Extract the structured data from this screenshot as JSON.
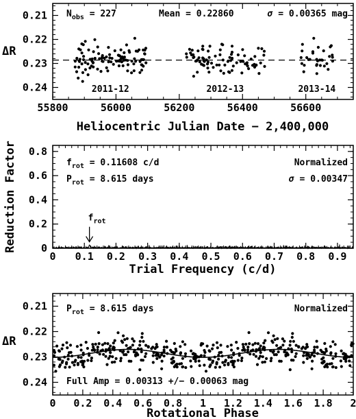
{
  "chart_data": [
    {
      "type": "scatter",
      "xlim": [
        55800,
        56750
      ],
      "ylim": [
        0.245,
        0.205
      ],
      "y_inverted": true,
      "xticks": [
        55800,
        56000,
        56200,
        56400,
        56600
      ],
      "yticks": [
        0.21,
        0.22,
        0.23,
        0.24
      ],
      "ytick_labels": [
        "0.21",
        "0.22",
        "0.23",
        "0.24"
      ],
      "xlabel": "Heliocentric Julian Date − 2,400,000",
      "ylabel": "ΔR",
      "mean_line": 0.2286,
      "annotations": {
        "nobs_main": "N",
        "nobs_sub": "obs",
        "nobs_value": " = 227",
        "mean": "Mean = 0.22860",
        "sigma_symbol": "σ",
        "sigma_value": " = 0.00365 mag"
      },
      "seasons": [
        {
          "label": "2011-12",
          "x_range": [
            55870,
            56095
          ]
        },
        {
          "label": "2012-13",
          "x_range": [
            56220,
            56470
          ]
        },
        {
          "label": "2013-14",
          "x_range": [
            56585,
            56685
          ]
        }
      ],
      "n_points": 227,
      "point_scatter_sigma": 0.00365
    },
    {
      "type": "line",
      "xlim": [
        0,
        0.95
      ],
      "ylim": [
        0,
        0.85
      ],
      "xticks": [
        0,
        0.1,
        0.2,
        0.3,
        0.4,
        0.5,
        0.6,
        0.7,
        0.8,
        0.9
      ],
      "xtick_labels": [
        "0",
        "0.1",
        "0.2",
        "0.3",
        "0.4",
        "0.5",
        "0.6",
        "0.7",
        "0.8",
        "0.9"
      ],
      "yticks": [
        0,
        0.2,
        0.4,
        0.6,
        0.8
      ],
      "ytick_labels": [
        "0",
        "0.2",
        "0.4",
        "0.6",
        "0.8"
      ],
      "xlabel": "Trial Frequency (c/d)",
      "ylabel": "Reduction Factor",
      "peak_frequency": 0.11608,
      "peak_value": 0.03,
      "noise_level": 0.01,
      "annotations": {
        "frot_main": "f",
        "frot_sub": "rot",
        "frot_value": " = 0.11608 c/d",
        "prot_main": "P",
        "prot_sub": "rot",
        "prot_value": " = 8.615 days",
        "normalized": "Normalized",
        "sigma_symbol": "σ",
        "sigma_value": " = 0.00347",
        "arrow_label_main": "f",
        "arrow_label_sub": "rot"
      }
    },
    {
      "type": "scatter",
      "xlim": [
        0,
        2
      ],
      "ylim": [
        0.245,
        0.205
      ],
      "y_inverted": true,
      "xticks": [
        0,
        0.2,
        0.4,
        0.6,
        0.8,
        1,
        1.2,
        1.4,
        1.6,
        1.8,
        2
      ],
      "xtick_labels": [
        "0",
        "0.2",
        "0.4",
        "0.6",
        "0.8",
        "1",
        "1.2",
        "1.4",
        "1.6",
        "1.8",
        "2"
      ],
      "yticks": [
        0.21,
        0.22,
        0.23,
        0.24
      ],
      "ytick_labels": [
        "0.21",
        "0.22",
        "0.23",
        "0.24"
      ],
      "xlabel": "Rotational Phase",
      "ylabel": "ΔR",
      "fit_curve": {
        "mean": 0.2286,
        "amplitude": 0.00313,
        "period_phase": 1,
        "phase_of_minimum_dR": 0.5
      },
      "n_points_per_cycle": 227,
      "point_scatter_sigma": 0.00347,
      "annotations": {
        "prot_main": "P",
        "prot_sub": "rot",
        "prot_value": " = 8.615 days",
        "normalized": "Normalized",
        "amp": "Full Amp = 0.00313 +/− 0.00063 mag"
      }
    }
  ]
}
